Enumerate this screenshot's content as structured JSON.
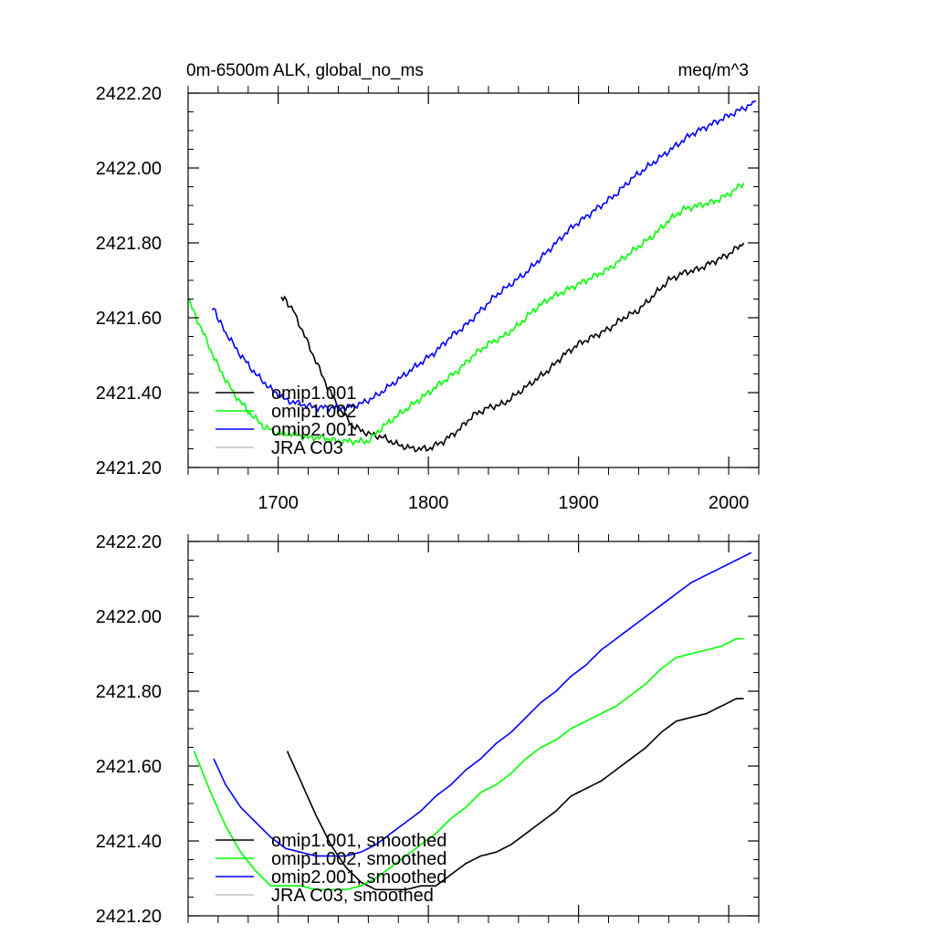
{
  "chart_data": [
    {
      "type": "line",
      "title": "0m-6500m ALK, global_no_ms",
      "units": "meq/m^3",
      "xlim": [
        1640,
        2020
      ],
      "ylim": [
        2421.2,
        2422.2
      ],
      "x_ticks": [
        1700,
        1800,
        1900,
        2000
      ],
      "x_tick_labels": [
        "1700",
        "1800",
        "1900",
        "2000"
      ],
      "y_ticks": [
        2421.2,
        2421.4,
        2421.6,
        2421.8,
        2422.0,
        2422.2
      ],
      "y_tick_labels": [
        "2421.20",
        "2421.40",
        "2421.60",
        "2421.80",
        "2422.00",
        "2422.20"
      ],
      "legend_position": "bottom-left",
      "series": [
        {
          "name": "omip1.001",
          "color": "#000000",
          "x": [
            1702,
            1710,
            1720,
            1730,
            1740,
            1750,
            1760,
            1770,
            1780,
            1790,
            1800,
            1810,
            1820,
            1830,
            1840,
            1850,
            1860,
            1870,
            1880,
            1890,
            1900,
            1910,
            1920,
            1930,
            1940,
            1950,
            1960,
            1970,
            1980,
            1990,
            2000,
            2010
          ],
          "y": [
            2421.66,
            2421.62,
            2421.53,
            2421.44,
            2421.36,
            2421.31,
            2421.29,
            2421.28,
            2421.26,
            2421.25,
            2421.25,
            2421.27,
            2421.3,
            2421.34,
            2421.36,
            2421.37,
            2421.4,
            2421.43,
            2421.46,
            2421.5,
            2421.53,
            2421.55,
            2421.57,
            2421.6,
            2421.62,
            2421.66,
            2421.7,
            2421.72,
            2421.73,
            2421.75,
            2421.77,
            2421.8
          ]
        },
        {
          "name": "omip1.002",
          "color": "#00ff00",
          "x": [
            1640,
            1650,
            1660,
            1670,
            1680,
            1690,
            1700,
            1710,
            1720,
            1730,
            1740,
            1750,
            1760,
            1770,
            1780,
            1790,
            1800,
            1810,
            1820,
            1830,
            1840,
            1850,
            1860,
            1870,
            1880,
            1890,
            1900,
            1910,
            1920,
            1930,
            1940,
            1950,
            1960,
            1970,
            1980,
            1990,
            2000,
            2010
          ],
          "y": [
            2421.65,
            2421.56,
            2421.47,
            2421.4,
            2421.35,
            2421.31,
            2421.29,
            2421.29,
            2421.28,
            2421.28,
            2421.27,
            2421.27,
            2421.27,
            2421.31,
            2421.34,
            2421.37,
            2421.4,
            2421.43,
            2421.46,
            2421.5,
            2421.53,
            2421.55,
            2421.58,
            2421.62,
            2421.65,
            2421.67,
            2421.69,
            2421.71,
            2421.73,
            2421.76,
            2421.79,
            2421.82,
            2421.86,
            2421.89,
            2421.9,
            2421.91,
            2421.93,
            2421.96
          ]
        },
        {
          "name": "omip2.001",
          "color": "#0000ff",
          "x": [
            1656,
            1665,
            1675,
            1685,
            1695,
            1705,
            1715,
            1725,
            1735,
            1745,
            1755,
            1765,
            1775,
            1785,
            1795,
            1805,
            1815,
            1825,
            1835,
            1845,
            1855,
            1865,
            1875,
            1885,
            1895,
            1905,
            1915,
            1925,
            1935,
            1945,
            1955,
            1965,
            1975,
            1985,
            1995,
            2005,
            2015,
            2018
          ],
          "y": [
            2421.63,
            2421.56,
            2421.5,
            2421.45,
            2421.41,
            2421.38,
            2421.37,
            2421.36,
            2421.36,
            2421.36,
            2421.37,
            2421.39,
            2421.42,
            2421.45,
            2421.48,
            2421.51,
            2421.55,
            2421.58,
            2421.62,
            2421.66,
            2421.69,
            2421.72,
            2421.76,
            2421.8,
            2421.84,
            2421.87,
            2421.9,
            2421.93,
            2421.97,
            2422.0,
            2422.03,
            2422.06,
            2422.09,
            2422.11,
            2422.13,
            2422.15,
            2422.17,
            2422.18
          ]
        },
        {
          "name": "JRA C03",
          "color": "#c0c0c0",
          "x": [],
          "y": []
        }
      ]
    },
    {
      "type": "line",
      "title": "",
      "xlim": [
        1640,
        2020
      ],
      "ylim": [
        2421.2,
        2422.2
      ],
      "y_ticks": [
        2421.2,
        2421.4,
        2421.6,
        2421.8,
        2422.0,
        2422.2
      ],
      "y_tick_labels": [
        "2421.20",
        "2421.40",
        "2421.60",
        "2421.80",
        "2422.00",
        "2422.20"
      ],
      "legend_position": "bottom-left",
      "series": [
        {
          "name": "omip1.001, smoothed",
          "color": "#000000",
          "x": [
            1706,
            1715,
            1725,
            1735,
            1745,
            1755,
            1765,
            1775,
            1785,
            1795,
            1805,
            1815,
            1825,
            1835,
            1845,
            1855,
            1865,
            1875,
            1885,
            1895,
            1905,
            1915,
            1925,
            1935,
            1945,
            1955,
            1965,
            1975,
            1985,
            1995,
            2005,
            2010
          ],
          "y": [
            2421.64,
            2421.56,
            2421.47,
            2421.39,
            2421.33,
            2421.29,
            2421.27,
            2421.27,
            2421.27,
            2421.28,
            2421.28,
            2421.31,
            2421.34,
            2421.36,
            2421.37,
            2421.39,
            2421.42,
            2421.45,
            2421.48,
            2421.52,
            2421.54,
            2421.56,
            2421.59,
            2421.62,
            2421.65,
            2421.69,
            2421.72,
            2421.73,
            2421.74,
            2421.76,
            2421.78,
            2421.78
          ]
        },
        {
          "name": "omip1.002, smoothed",
          "color": "#00ff00",
          "x": [
            1644,
            1655,
            1665,
            1675,
            1685,
            1695,
            1705,
            1715,
            1725,
            1735,
            1745,
            1755,
            1765,
            1775,
            1785,
            1795,
            1805,
            1815,
            1825,
            1835,
            1845,
            1855,
            1865,
            1875,
            1885,
            1895,
            1905,
            1915,
            1925,
            1935,
            1945,
            1955,
            1965,
            1975,
            1985,
            1995,
            2005,
            2010
          ],
          "y": [
            2421.64,
            2421.53,
            2421.44,
            2421.37,
            2421.32,
            2421.28,
            2421.28,
            2421.28,
            2421.27,
            2421.27,
            2421.27,
            2421.28,
            2421.3,
            2421.33,
            2421.36,
            2421.39,
            2421.42,
            2421.46,
            2421.49,
            2421.53,
            2421.55,
            2421.58,
            2421.62,
            2421.65,
            2421.67,
            2421.7,
            2421.72,
            2421.74,
            2421.76,
            2421.79,
            2421.82,
            2421.86,
            2421.89,
            2421.9,
            2421.91,
            2421.92,
            2421.94,
            2421.94
          ]
        },
        {
          "name": "omip2.001, smoothed",
          "color": "#0000ff",
          "x": [
            1657,
            1665,
            1675,
            1685,
            1695,
            1705,
            1715,
            1725,
            1735,
            1745,
            1755,
            1765,
            1775,
            1785,
            1795,
            1805,
            1815,
            1825,
            1835,
            1845,
            1855,
            1865,
            1875,
            1885,
            1895,
            1905,
            1915,
            1925,
            1935,
            1945,
            1955,
            1965,
            1975,
            1985,
            1995,
            2005,
            2015
          ],
          "y": [
            2421.62,
            2421.55,
            2421.49,
            2421.45,
            2421.41,
            2421.38,
            2421.37,
            2421.36,
            2421.36,
            2421.36,
            2421.37,
            2421.39,
            2421.42,
            2421.45,
            2421.48,
            2421.52,
            2421.55,
            2421.59,
            2421.62,
            2421.66,
            2421.69,
            2421.73,
            2421.77,
            2421.8,
            2421.84,
            2421.87,
            2421.91,
            2421.94,
            2421.97,
            2422.0,
            2422.03,
            2422.06,
            2422.09,
            2422.11,
            2422.13,
            2422.15,
            2422.17
          ]
        },
        {
          "name": "JRA C03, smoothed",
          "color": "#c0c0c0",
          "x": [],
          "y": []
        }
      ]
    }
  ]
}
